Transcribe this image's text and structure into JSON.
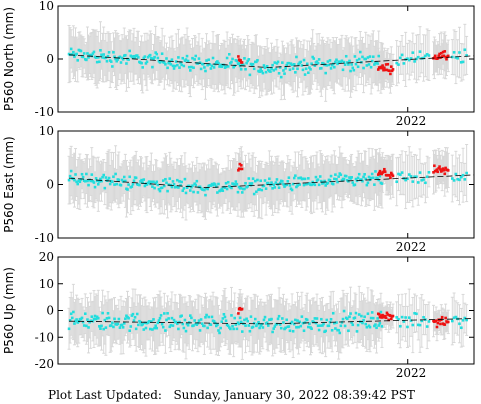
{
  "chart_data": [
    {
      "type": "scatter",
      "ylabel": "P560 North (mm)",
      "ylim": [
        -10,
        10
      ],
      "y_ticks": [
        -10,
        0,
        10
      ],
      "x_tick_labels": [
        "2022"
      ],
      "grid": false,
      "series": [
        {
          "color": "#22dddd",
          "trend": [
            {
              "x": 2021.08,
              "y": 0.8
            },
            {
              "x": 2021.62,
              "y": -1.6
            },
            {
              "x": 2022.18,
              "y": 0.6
            }
          ],
          "amp": 2.2,
          "err": 4.5,
          "n": 290,
          "x_range": [
            2021.08,
            2021.93
          ]
        },
        {
          "color": "#ee1111",
          "x_clusters": [
            [
              2021.54,
              2021.55
            ],
            [
              2021.92,
              2021.96
            ],
            [
              2022.07,
              2022.11
            ]
          ],
          "values_mean": [
            -0.2,
            -1.8,
            0.5
          ],
          "err": 3.5
        }
      ]
    },
    {
      "type": "scatter",
      "ylabel": "P560 East (mm)",
      "ylim": [
        -10,
        10
      ],
      "y_ticks": [
        -10,
        0,
        10
      ],
      "x_tick_labels": [
        "2022"
      ],
      "grid": false,
      "series": [
        {
          "color": "#22dddd",
          "trend": [
            {
              "x": 2021.08,
              "y": 1.2
            },
            {
              "x": 2021.45,
              "y": -0.6
            },
            {
              "x": 2022.18,
              "y": 1.8
            }
          ],
          "amp": 2.0,
          "err": 4.5,
          "n": 290,
          "x_range": [
            2021.08,
            2021.93
          ]
        },
        {
          "color": "#ee1111",
          "x_clusters": [
            [
              2021.54,
              2021.55
            ],
            [
              2021.92,
              2021.96
            ],
            [
              2022.07,
              2022.11
            ]
          ],
          "values_mean": [
            3.0,
            2.0,
            2.5
          ],
          "err": 3.5
        }
      ]
    },
    {
      "type": "scatter",
      "ylabel": "P560 Up (mm)",
      "ylim": [
        -20,
        20
      ],
      "y_ticks": [
        -20,
        -10,
        0,
        10,
        20
      ],
      "x_tick_labels": [
        "2022"
      ],
      "grid": false,
      "series": [
        {
          "color": "#22dddd",
          "trend": [
            {
              "x": 2021.08,
              "y": -4.0
            },
            {
              "x": 2021.62,
              "y": -5.0
            },
            {
              "x": 2022.18,
              "y": -3.0
            }
          ],
          "amp": 5.0,
          "err": 9.0,
          "n": 290,
          "x_range": [
            2021.08,
            2021.93
          ]
        },
        {
          "color": "#ee1111",
          "x_clusters": [
            [
              2021.54,
              2021.55
            ],
            [
              2021.92,
              2021.96
            ],
            [
              2022.07,
              2022.11
            ]
          ],
          "values_mean": [
            0.0,
            -2.0,
            -4.5
          ],
          "err": 5.0
        }
      ]
    }
  ],
  "x_axis": {
    "min": 2021.05,
    "max": 2022.18,
    "tick_2022": 2022.0
  },
  "footer": {
    "label": "Plot Last Updated:",
    "timestamp": "Sunday, January 30, 2022 08:39:42 PST"
  }
}
